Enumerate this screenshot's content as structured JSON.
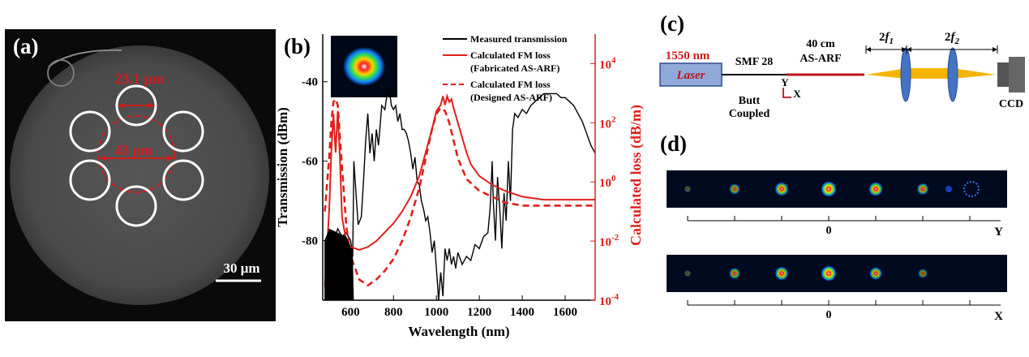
{
  "panels": {
    "a": {
      "label": "(a)",
      "dim_top": "23.1 μm",
      "dim_core": "43 μm",
      "scale": "30 μm",
      "colors": {
        "bg": "#4d4d4d",
        "ring": "#ffffff",
        "annot": "#d41a1a"
      }
    },
    "b": {
      "label": "(b)",
      "chart_data": {
        "type": "line",
        "xlabel": "Wavelength (nm)",
        "ylabel_left": "Transmission (dBm)",
        "ylabel_right": "Calculated loss (dB/m)",
        "xlim": [
          470,
          1740
        ],
        "ylim_left": [
          -95,
          -28
        ],
        "ylim_right_log10": [
          -4,
          5
        ],
        "x_ticks": [
          "600",
          "800",
          "1000",
          "1200",
          "1400",
          "1600"
        ],
        "x_tick_values": [
          600,
          800,
          1000,
          1200,
          1400,
          1600
        ],
        "y_left_ticks": [
          "-40",
          "-60",
          "-80"
        ],
        "y_left_tick_values": [
          -40,
          -60,
          -80
        ],
        "y_right_tick_exponents": [
          "4",
          "2",
          "0",
          "-2",
          "-4"
        ],
        "y_right_tick_base": "10",
        "y_right_tick_values": [
          4,
          2,
          0,
          -2,
          -4
        ],
        "legend_position": "top-right",
        "series": [
          {
            "name": "Measured transmission",
            "axis": "left",
            "color": "#000000",
            "dash": "solid",
            "points": [
              [
                480,
                -92
              ],
              [
                500,
                -78
              ],
              [
                520,
                -80
              ],
              [
                540,
                -77
              ],
              [
                560,
                -79
              ],
              [
                580,
                -78
              ],
              [
                600,
                -80
              ],
              [
                610,
                -84
              ],
              [
                615,
                -60
              ],
              [
                625,
                -68
              ],
              [
                635,
                -76
              ],
              [
                650,
                -74
              ],
              [
                660,
                -65
              ],
              [
                670,
                -55
              ],
              [
                680,
                -48
              ],
              [
                690,
                -58
              ],
              [
                700,
                -53
              ],
              [
                710,
                -60
              ],
              [
                720,
                -52
              ],
              [
                730,
                -56
              ],
              [
                745,
                -46
              ],
              [
                760,
                -47
              ],
              [
                770,
                -43
              ],
              [
                780,
                -42
              ],
              [
                790,
                -46
              ],
              [
                800,
                -47
              ],
              [
                810,
                -46
              ],
              [
                820,
                -50
              ],
              [
                830,
                -48
              ],
              [
                840,
                -52
              ],
              [
                850,
                -52
              ],
              [
                860,
                -53
              ],
              [
                870,
                -55
              ],
              [
                880,
                -58
              ],
              [
                890,
                -62
              ],
              [
                900,
                -59
              ],
              [
                910,
                -65
              ],
              [
                920,
                -66
              ],
              [
                930,
                -70
              ],
              [
                940,
                -72
              ],
              [
                950,
                -75
              ],
              [
                960,
                -74
              ],
              [
                970,
                -78
              ],
              [
                980,
                -83
              ],
              [
                990,
                -80
              ],
              [
                1000,
                -87
              ],
              [
                1010,
                -95
              ],
              [
                1020,
                -88
              ],
              [
                1030,
                -94
              ],
              [
                1040,
                -82
              ],
              [
                1050,
                -85
              ],
              [
                1060,
                -82
              ],
              [
                1070,
                -86
              ],
              [
                1080,
                -84
              ],
              [
                1090,
                -87
              ],
              [
                1100,
                -83
              ],
              [
                1120,
                -86
              ],
              [
                1140,
                -84
              ],
              [
                1160,
                -85
              ],
              [
                1180,
                -81
              ],
              [
                1200,
                -82
              ],
              [
                1220,
                -79
              ],
              [
                1240,
                -78
              ],
              [
                1250,
                -72
              ],
              [
                1260,
                -60
              ],
              [
                1265,
                -70
              ],
              [
                1275,
                -80
              ],
              [
                1285,
                -64
              ],
              [
                1295,
                -72
              ],
              [
                1305,
                -82
              ],
              [
                1315,
                -68
              ],
              [
                1325,
                -75
              ],
              [
                1335,
                -60
              ],
              [
                1345,
                -70
              ],
              [
                1355,
                -52
              ],
              [
                1365,
                -48
              ],
              [
                1380,
                -49
              ],
              [
                1400,
                -47
              ],
              [
                1420,
                -48
              ],
              [
                1440,
                -46
              ],
              [
                1460,
                -45
              ],
              [
                1480,
                -44
              ],
              [
                1500,
                -43
              ],
              [
                1520,
                -43
              ],
              [
                1540,
                -43
              ],
              [
                1560,
                -43
              ],
              [
                1580,
                -44
              ],
              [
                1600,
                -44
              ],
              [
                1620,
                -45
              ],
              [
                1640,
                -46
              ],
              [
                1660,
                -48
              ],
              [
                1680,
                -50
              ],
              [
                1700,
                -53
              ],
              [
                1720,
                -56
              ],
              [
                1740,
                -58
              ]
            ]
          },
          {
            "name": "Calculated FM loss",
            "name2": "(Fabricated AS-ARF)",
            "axis": "right",
            "color": "#e0201c",
            "dash": "solid",
            "points": [
              [
                480,
                -3.5
              ],
              [
                500,
                -1.0
              ],
              [
                510,
                1.0
              ],
              [
                520,
                2.3
              ],
              [
                530,
                1.0
              ],
              [
                540,
                2.4
              ],
              [
                550,
                0.8
              ],
              [
                560,
                -1.2
              ],
              [
                580,
                -2.0
              ],
              [
                600,
                -2.2
              ],
              [
                640,
                -2.3
              ],
              [
                680,
                -2.2
              ],
              [
                720,
                -2.0
              ],
              [
                760,
                -1.7
              ],
              [
                800,
                -1.4
              ],
              [
                840,
                -1.0
              ],
              [
                880,
                -0.5
              ],
              [
                920,
                0.2
              ],
              [
                950,
                1.0
              ],
              [
                980,
                1.8
              ],
              [
                1000,
                2.4
              ],
              [
                1020,
                2.6
              ],
              [
                1030,
                2.9
              ],
              [
                1040,
                2.6
              ],
              [
                1050,
                2.9
              ],
              [
                1060,
                2.7
              ],
              [
                1070,
                2.8
              ],
              [
                1080,
                2.5
              ],
              [
                1100,
                2.0
              ],
              [
                1120,
                1.5
              ],
              [
                1140,
                1.0
              ],
              [
                1160,
                0.6
              ],
              [
                1200,
                0.2
              ],
              [
                1260,
                -0.1
              ],
              [
                1320,
                -0.3
              ],
              [
                1400,
                -0.5
              ],
              [
                1500,
                -0.6
              ],
              [
                1600,
                -0.6
              ],
              [
                1740,
                -0.6
              ]
            ]
          },
          {
            "name": "Calculated FM loss",
            "name2": "(Designed AS-ARF)",
            "axis": "right",
            "color": "#e0201c",
            "dash": "dashed",
            "points": [
              [
                480,
                -1.0
              ],
              [
                500,
                0.8
              ],
              [
                510,
                2.0
              ],
              [
                520,
                2.7
              ],
              [
                530,
                2.8
              ],
              [
                540,
                2.6
              ],
              [
                560,
                0.5
              ],
              [
                580,
                -1.5
              ],
              [
                600,
                -2.5
              ],
              [
                640,
                -3.3
              ],
              [
                680,
                -3.5
              ],
              [
                720,
                -3.3
              ],
              [
                760,
                -3.0
              ],
              [
                800,
                -2.6
              ],
              [
                840,
                -2.0
              ],
              [
                880,
                -1.2
              ],
              [
                920,
                -0.2
              ],
              [
                950,
                0.8
              ],
              [
                980,
                1.8
              ],
              [
                1000,
                2.3
              ],
              [
                1020,
                2.5
              ],
              [
                1040,
                2.4
              ],
              [
                1060,
                2.0
              ],
              [
                1080,
                1.4
              ],
              [
                1100,
                0.8
              ],
              [
                1140,
                0.1
              ],
              [
                1200,
                -0.3
              ],
              [
                1260,
                -0.5
              ],
              [
                1320,
                -0.7
              ],
              [
                1400,
                -0.8
              ],
              [
                1500,
                -0.8
              ],
              [
                1600,
                -0.8
              ],
              [
                1740,
                -0.8
              ]
            ]
          }
        ],
        "legend": [
          {
            "text": "Measured transmission",
            "color": "#000000",
            "dash": "solid"
          },
          {
            "text": "Calculated FM loss",
            "sub": "(Fabricated AS-ARF)",
            "color": "#e0201c",
            "dash": "solid"
          },
          {
            "text": "Calculated FM loss",
            "sub": "(Designed AS-ARF)",
            "color": "#e0201c",
            "dash": "dashed"
          }
        ]
      }
    },
    "c": {
      "label": "(c)",
      "laser_wavelength": "1550 nm",
      "laser": "Laser",
      "smf": "SMF 28",
      "fiber_len": "40 cm",
      "fiber": "AS-ARF",
      "butt1": "Butt",
      "butt2": "Coupled",
      "axis_y": "Y",
      "axis_x": "X",
      "f1_prefix": "2",
      "f1": "f",
      "f1_sub": "1",
      "f2_prefix": "2",
      "f2": "f",
      "f2_sub": "2",
      "ccd": "CCD",
      "colors": {
        "laser": "#8fa9d8",
        "fiber": "#c0121a",
        "beam": "#f4b400",
        "lens": "#4472c4"
      }
    },
    "d": {
      "label": "(d)",
      "rows": [
        {
          "axis": "Y",
          "zero": "0",
          "spots": [
            0.06,
            0.5,
            0.8,
            1.0,
            0.85,
            0.6,
            0.08
          ],
          "ring_last": true
        },
        {
          "axis": "X",
          "zero": "0",
          "spots": [
            0.05,
            0.55,
            0.8,
            1.0,
            0.7,
            0.35
          ],
          "ring_last": false
        }
      ]
    }
  }
}
